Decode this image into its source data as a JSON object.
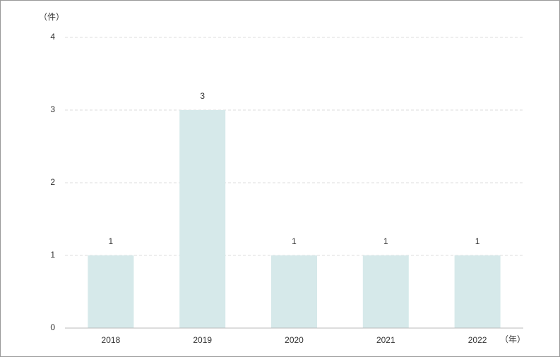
{
  "chart_data": {
    "type": "bar",
    "y_axis_label": "（件）",
    "x_axis_label": "（年）",
    "categories": [
      "2018",
      "2019",
      "2020",
      "2021",
      "2022"
    ],
    "values": [
      1,
      3,
      1,
      1,
      1
    ],
    "color": "#d6e9ea",
    "ylim": [
      0,
      4
    ],
    "yticks": [
      0,
      1,
      2,
      3,
      4
    ],
    "grid": true
  }
}
